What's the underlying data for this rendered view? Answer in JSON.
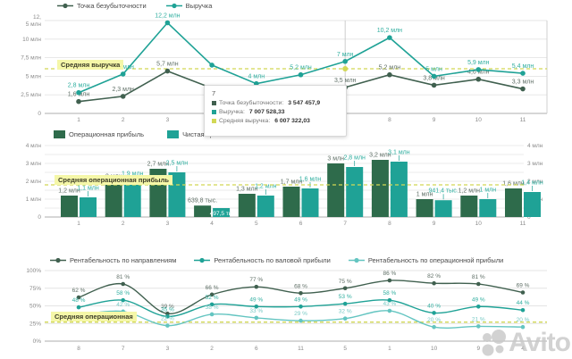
{
  "colors": {
    "dark": "#40604f",
    "dark_bar": "#2e6b4b",
    "teal": "#1fa296",
    "light_teal": "#64c5c1",
    "avg": "#d2d855",
    "avg_label_bg": "#f5f7a8",
    "grid": "#e4e4e4",
    "baseline": "#adadad",
    "axis_text": "#8a8a8a"
  },
  "tooltip": {
    "header": "7",
    "rows": [
      {
        "label": "Точка безубыточности:",
        "value": "3 547 457,9",
        "color": "#40604f"
      },
      {
        "label": "Выручка:",
        "value": "7 007 528,33",
        "color": "#1fa296"
      },
      {
        "label": "Средняя выручка:",
        "value": "6 007 322,03",
        "color": "#d2d855"
      }
    ]
  },
  "watermark": {
    "text": "Avito"
  },
  "chart_data": [
    {
      "type": "line",
      "title": "",
      "categories": [
        "1",
        "2",
        "3",
        "4",
        "5",
        "6",
        "7",
        "8",
        "9",
        "10",
        "11"
      ],
      "ylim": [
        0,
        12.5
      ],
      "yticks": [
        {
          "v": 12.5,
          "lines": [
            "12,",
            "5 млн"
          ]
        },
        {
          "v": 10,
          "lines": [
            "10 млн"
          ]
        },
        {
          "v": 7.5,
          "lines": [
            "7,5 млн"
          ]
        },
        {
          "v": 5,
          "lines": [
            "5 млн"
          ]
        },
        {
          "v": 2.5,
          "lines": [
            "2,5 млн"
          ]
        },
        {
          "v": 0,
          "lines": [
            "0"
          ]
        }
      ],
      "series": [
        {
          "name": "Точка безубыточности",
          "color": "#40604f",
          "label_color": "#5f6f66",
          "values": [
            1.6,
            2.3,
            5.7,
            3.4,
            2.8,
            3.0,
            3.5,
            5.2,
            3.8,
            4.6,
            3.3
          ],
          "labels": [
            "1,6 млн",
            "2,3 млн",
            "5,7 млн",
            "",
            "",
            "",
            "3,5 млн",
            "5,2 млн",
            "3,8 млн",
            "4,6 млн",
            "3,3 млн"
          ]
        },
        {
          "name": "Выручка",
          "color": "#1fa296",
          "label_color": "#2fae9f",
          "values": [
            2.8,
            5.3,
            12.2,
            6.5,
            4.0,
            5.2,
            7.0,
            10.2,
            5.0,
            5.9,
            5.4
          ],
          "labels": [
            "2,8 млн",
            "5,3 млн",
            "12,2 млн",
            "",
            "4 млн",
            "5,2 млн",
            "7 млн",
            "10,2 млн",
            "5 млн",
            "5,9 млн",
            "5,4 млн"
          ]
        }
      ],
      "average": {
        "value": 6.01,
        "label": "Средняя выручка"
      },
      "hover_index": 6,
      "legend_position": "top"
    },
    {
      "type": "bar",
      "title": "",
      "categories": [
        "1",
        "2",
        "3",
        "4",
        "5",
        "6",
        "7",
        "8",
        "9",
        "10",
        "11"
      ],
      "ylim": [
        0,
        4
      ],
      "yticks": [
        {
          "v": 4,
          "lines": [
            "4 млн"
          ]
        },
        {
          "v": 3,
          "lines": [
            "3 млн"
          ]
        },
        {
          "v": 2,
          "lines": [
            "2 млн"
          ]
        },
        {
          "v": 1,
          "lines": [
            "1 млн"
          ]
        },
        {
          "v": 0,
          "lines": [
            "0"
          ]
        }
      ],
      "series": [
        {
          "name": "Операционная прибыль",
          "color": "#2e6b4b",
          "label_color": "#5f6f66",
          "values": [
            1.2,
            2.0,
            2.7,
            0.64,
            1.3,
            1.7,
            3.0,
            3.2,
            1.0,
            1.2,
            1.6
          ],
          "labels": [
            "1,2 млн",
            "2 млн",
            "2,7 млн",
            "639,8 тыс.",
            "1,3 млн",
            "1,7 млн",
            "3 млн",
            "3,2 млн",
            "1 млн",
            "1,2 млн",
            "1,6 млн"
          ]
        },
        {
          "name": "Чистая прибыль",
          "color": "#1fa296",
          "label_color": "#2fae9f",
          "values": [
            1.1,
            1.9,
            2.5,
            0.5,
            1.2,
            1.6,
            2.8,
            3.1,
            0.94,
            1.0,
            1.4
          ],
          "labels": [
            "1,1 млн",
            "1,9 млн",
            "2,5 млн",
            "497,5 ты",
            "1,2 млн",
            "1,6 млн",
            "2,8 млн",
            "3,1 млн",
            "941,4 тыс.",
            "1 млн",
            "1,4 млн"
          ],
          "inside_labels": [
            3
          ]
        }
      ],
      "average": {
        "value": 1.8,
        "label": "Средняя операционная прибыль"
      },
      "legend_position": "top"
    },
    {
      "type": "line",
      "title": "",
      "categories": [
        "8",
        "7",
        "3",
        "2",
        "6",
        "11",
        "5",
        "1",
        "10",
        "9",
        "4"
      ],
      "ylim": [
        0,
        100
      ],
      "yticks": [
        {
          "v": 100,
          "lines": [
            "100%"
          ]
        },
        {
          "v": 75,
          "lines": [
            "75%"
          ]
        },
        {
          "v": 50,
          "lines": [
            "50%"
          ]
        },
        {
          "v": 25,
          "lines": [
            "25%"
          ]
        },
        {
          "v": 0,
          "lines": [
            "0%"
          ]
        }
      ],
      "series": [
        {
          "name": "Рентабельность по направлениям",
          "color": "#40604f",
          "label_color": "#5f6f66",
          "values": [
            62,
            81,
            39,
            66,
            77,
            68,
            75,
            86,
            82,
            81,
            69
          ],
          "labels": [
            "62 %",
            "81 %",
            "39 %",
            "66 %",
            "77 %",
            "68 %",
            "75 %",
            "86 %",
            "82 %",
            "81 %",
            "69 %"
          ]
        },
        {
          "name": "Рентабельность по валовой прибыли",
          "color": "#1fa296",
          "label_color": "#2fae9f",
          "values": [
            48,
            58,
            35,
            52,
            49,
            49,
            53,
            58,
            40,
            49,
            44
          ],
          "labels": [
            "48 %",
            "58 %",
            "35 %",
            "52 %",
            "49 %",
            "49 %",
            "53 %",
            "58 %",
            "40 %",
            "49 %",
            "44 %"
          ]
        },
        {
          "name": "Рентабельность по операционной прибыли",
          "color": "#64c5c1",
          "label_color": "#79cac5",
          "values": [
            37,
            42,
            22,
            38,
            33,
            29,
            32,
            43,
            20,
            21,
            20
          ],
          "labels": [
            "",
            "42 %",
            "22 %",
            "38 %",
            "33 %",
            "29 %",
            "32 %",
            "43 %",
            "20 %",
            "21 %",
            "20 %"
          ]
        }
      ],
      "average": {
        "value": 27,
        "label": "Средняя операционная"
      },
      "legend_position": "top"
    }
  ]
}
